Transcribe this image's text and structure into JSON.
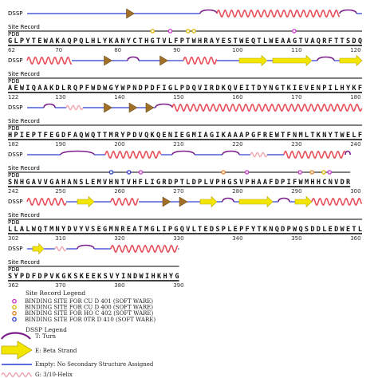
{
  "labels": {
    "dssp": "DSSP",
    "site_record": "Site Record",
    "pdb": "PDB"
  },
  "colors": {
    "helix": "#e8505b",
    "strand_fill": "#f2e600",
    "strand_edge": "#b8a800",
    "turn": "#7a1f8a",
    "bend": "#a07028",
    "gap": "#2a3ad0",
    "site_magenta": "#cc33cc",
    "site_yellow": "#d8b400",
    "site_orange": "#e87d1e",
    "site_blue": "#2a3ad0"
  },
  "rows": [
    {
      "sequence": "GLPYTEWAKAQPQLHLYKANYCTHGTVLFPTWHRAYESTWEQTLWEAAGTVAQRFTTSDQ",
      "numbers": [
        "62",
        "70",
        "80",
        "90",
        "100",
        "110",
        "120"
      ],
      "dssp": [
        {
          "type": "coil",
          "from": 0,
          "to": 17
        },
        {
          "type": "bend",
          "from": 17,
          "to": 20
        },
        {
          "type": "coil",
          "from": 20,
          "to": 31
        },
        {
          "type": "turn",
          "from": 31,
          "to": 34
        },
        {
          "type": "helix",
          "from": 34,
          "to": 56
        },
        {
          "type": "turn",
          "from": 56,
          "to": 59
        },
        {
          "type": "coil",
          "from": 59,
          "to": 60
        }
      ],
      "sites": [
        {
          "at": 24,
          "color": "site_yellow"
        },
        {
          "at": 27,
          "color": "site_magenta"
        },
        {
          "at": 30,
          "color": "site_yellow"
        },
        {
          "at": 31,
          "color": "site_yellow"
        },
        {
          "at": 48,
          "color": "site_magenta"
        }
      ]
    },
    {
      "sequence": "AEWIQAAKDLRQPFWDWGYWPNDPDFIGLPDQVIRDKQVEITDYNGTKIEVENPILHYKF",
      "numbers": [
        "122",
        "130",
        "140",
        "150",
        "160",
        "170",
        "180"
      ],
      "dssp": [
        {
          "type": "helix",
          "from": 0,
          "to": 8
        },
        {
          "type": "coil",
          "from": 8,
          "to": 13
        },
        {
          "type": "bend",
          "from": 13,
          "to": 16
        },
        {
          "type": "coil",
          "from": 16,
          "to": 18
        },
        {
          "type": "turn",
          "from": 18,
          "to": 20
        },
        {
          "type": "coil",
          "from": 20,
          "to": 23
        },
        {
          "type": "bend",
          "from": 23,
          "to": 26
        },
        {
          "type": "coil",
          "from": 26,
          "to": 28
        },
        {
          "type": "helix",
          "from": 28,
          "to": 34
        },
        {
          "type": "coil",
          "from": 34,
          "to": 38
        },
        {
          "type": "strand",
          "from": 38,
          "to": 43
        },
        {
          "type": "coil",
          "from": 43,
          "to": 44
        },
        {
          "type": "strand",
          "from": 44,
          "to": 51
        },
        {
          "type": "coil",
          "from": 51,
          "to": 52
        },
        {
          "type": "turn",
          "from": 52,
          "to": 55
        },
        {
          "type": "coil",
          "from": 55,
          "to": 56
        },
        {
          "type": "strand",
          "from": 56,
          "to": 60
        }
      ],
      "sites": []
    },
    {
      "sequence": "HPIEPTFEGDFAQWQTTMRYPDVQKQENIEGMIAGIKAAAPGFREWTFNMLTKNYTWELF",
      "numbers": [
        "182",
        "190",
        "200",
        "210",
        "220",
        "230",
        "240"
      ],
      "dssp": [
        {
          "type": "coil",
          "from": 0,
          "to": 3
        },
        {
          "type": "turn",
          "from": 3,
          "to": 5
        },
        {
          "type": "coil",
          "from": 5,
          "to": 7
        },
        {
          "type": "helix310",
          "from": 7,
          "to": 10
        },
        {
          "type": "coil",
          "from": 10,
          "to": 13
        },
        {
          "type": "bend",
          "from": 13,
          "to": 16
        },
        {
          "type": "coil",
          "from": 16,
          "to": 18
        },
        {
          "type": "bend",
          "from": 18,
          "to": 20
        },
        {
          "type": "coil",
          "from": 20,
          "to": 21
        },
        {
          "type": "bend",
          "from": 21,
          "to": 23
        },
        {
          "type": "turn",
          "from": 23,
          "to": 26
        },
        {
          "type": "helix",
          "from": 26,
          "to": 60
        }
      ],
      "sites": []
    },
    {
      "sequence": "SNHGAVVGAHANSLEMVHNTVHFLIGRDPTLDPLVPHGSVPHAAFDPIFWMHHCNVDR",
      "numbers": [
        "242",
        "250",
        "260",
        "270",
        "280",
        "290",
        "300"
      ],
      "dssp": [
        {
          "type": "coil",
          "from": 0,
          "to": 6
        },
        {
          "type": "turn",
          "from": 6,
          "to": 12
        },
        {
          "type": "coil",
          "from": 12,
          "to": 14
        },
        {
          "type": "helix",
          "from": 14,
          "to": 24
        },
        {
          "type": "coil",
          "from": 24,
          "to": 26
        },
        {
          "type": "turn",
          "from": 26,
          "to": 30
        },
        {
          "type": "coil",
          "from": 30,
          "to": 35
        },
        {
          "type": "turn",
          "from": 35,
          "to": 38
        },
        {
          "type": "coil",
          "from": 38,
          "to": 40
        },
        {
          "type": "helix310",
          "from": 40,
          "to": 43
        },
        {
          "type": "coil",
          "from": 43,
          "to": 46
        },
        {
          "type": "helix",
          "from": 46,
          "to": 57
        },
        {
          "type": "turn",
          "from": 57,
          "to": 58
        }
      ],
      "sites": [
        {
          "at": 17,
          "color": "site_blue"
        },
        {
          "at": 20,
          "color": "site_blue"
        },
        {
          "at": 22,
          "color": "site_magenta"
        },
        {
          "at": 36,
          "color": "site_orange"
        },
        {
          "at": 40,
          "color": "site_magenta"
        },
        {
          "at": 49,
          "color": "site_magenta"
        },
        {
          "at": 51,
          "color": "site_orange"
        },
        {
          "at": 53,
          "color": "site_yellow"
        },
        {
          "at": 54,
          "color": "site_magenta"
        }
      ]
    },
    {
      "sequence": "LLALWQTMNYDVYVSEGMNREATMGLIPGQVLTEDSPLEPFYTKNQDPWQSDDLEDWETL",
      "numbers": [
        "302",
        "310",
        "320",
        "330",
        "340",
        "350",
        "360"
      ],
      "dssp": [
        {
          "type": "helix",
          "from": 0,
          "to": 7
        },
        {
          "type": "coil",
          "from": 7,
          "to": 9
        },
        {
          "type": "strand",
          "from": 9,
          "to": 12
        },
        {
          "type": "coil",
          "from": 12,
          "to": 15
        },
        {
          "type": "helix",
          "from": 15,
          "to": 20
        },
        {
          "type": "coil",
          "from": 20,
          "to": 24
        },
        {
          "type": "bend",
          "from": 24,
          "to": 26
        },
        {
          "type": "coil",
          "from": 26,
          "to": 27
        },
        {
          "type": "bend",
          "from": 27,
          "to": 29
        },
        {
          "type": "coil",
          "from": 29,
          "to": 31
        },
        {
          "type": "strand",
          "from": 31,
          "to": 34
        },
        {
          "type": "coil",
          "from": 34,
          "to": 35
        },
        {
          "type": "turn",
          "from": 35,
          "to": 37
        },
        {
          "type": "coil",
          "from": 37,
          "to": 38
        },
        {
          "type": "strand",
          "from": 38,
          "to": 44
        },
        {
          "type": "coil",
          "from": 44,
          "to": 45
        },
        {
          "type": "turn",
          "from": 45,
          "to": 47
        },
        {
          "type": "coil",
          "from": 47,
          "to": 48
        },
        {
          "type": "strand",
          "from": 48,
          "to": 51
        },
        {
          "type": "helix",
          "from": 51,
          "to": 60
        }
      ],
      "sites": []
    },
    {
      "sequence": "SYPDFDPVKGKSKEEKSVYINDWIHKHYG",
      "numbers": [
        "362",
        "370",
        "380",
        "390"
      ],
      "dssp": [
        {
          "type": "coil",
          "from": 0,
          "to": 1
        },
        {
          "type": "strand",
          "from": 1,
          "to": 3
        },
        {
          "type": "coil",
          "from": 3,
          "to": 5
        },
        {
          "type": "helix310",
          "from": 5,
          "to": 7
        },
        {
          "type": "coil",
          "from": 7,
          "to": 9
        },
        {
          "type": "turn",
          "from": 9,
          "to": 12
        },
        {
          "type": "coil",
          "from": 12,
          "to": 15
        },
        {
          "type": "helix",
          "from": 15,
          "to": 27
        },
        {
          "type": "coil",
          "from": 27,
          "to": 29
        }
      ],
      "sites": []
    }
  ],
  "site_legend": {
    "title": "Site Record Legend",
    "items": [
      {
        "color": "site_magenta",
        "label": "BINDING SITE FOR CU D 401 (SOFT WARE)"
      },
      {
        "color": "site_yellow",
        "label": "BINDING SITE FOR CU D 400 (SOFT WARE)"
      },
      {
        "color": "site_orange",
        "label": "BINDING SITE FOR HO C 402 (SOFT WARE)"
      },
      {
        "color": "site_blue",
        "label": "BINDING SITE FOR 0TR D 410 (SOFT WARE)"
      }
    ]
  },
  "dssp_legend": {
    "title": "DSSP Legend",
    "items": [
      {
        "type": "turn",
        "label": "T: Turn"
      },
      {
        "type": "strand",
        "label": "E: Beta Strand"
      },
      {
        "type": "coil",
        "label": "Empty: No Secondary Structure Assigned"
      },
      {
        "type": "helix310",
        "label": "G: 3/10-Helix"
      }
    ]
  }
}
